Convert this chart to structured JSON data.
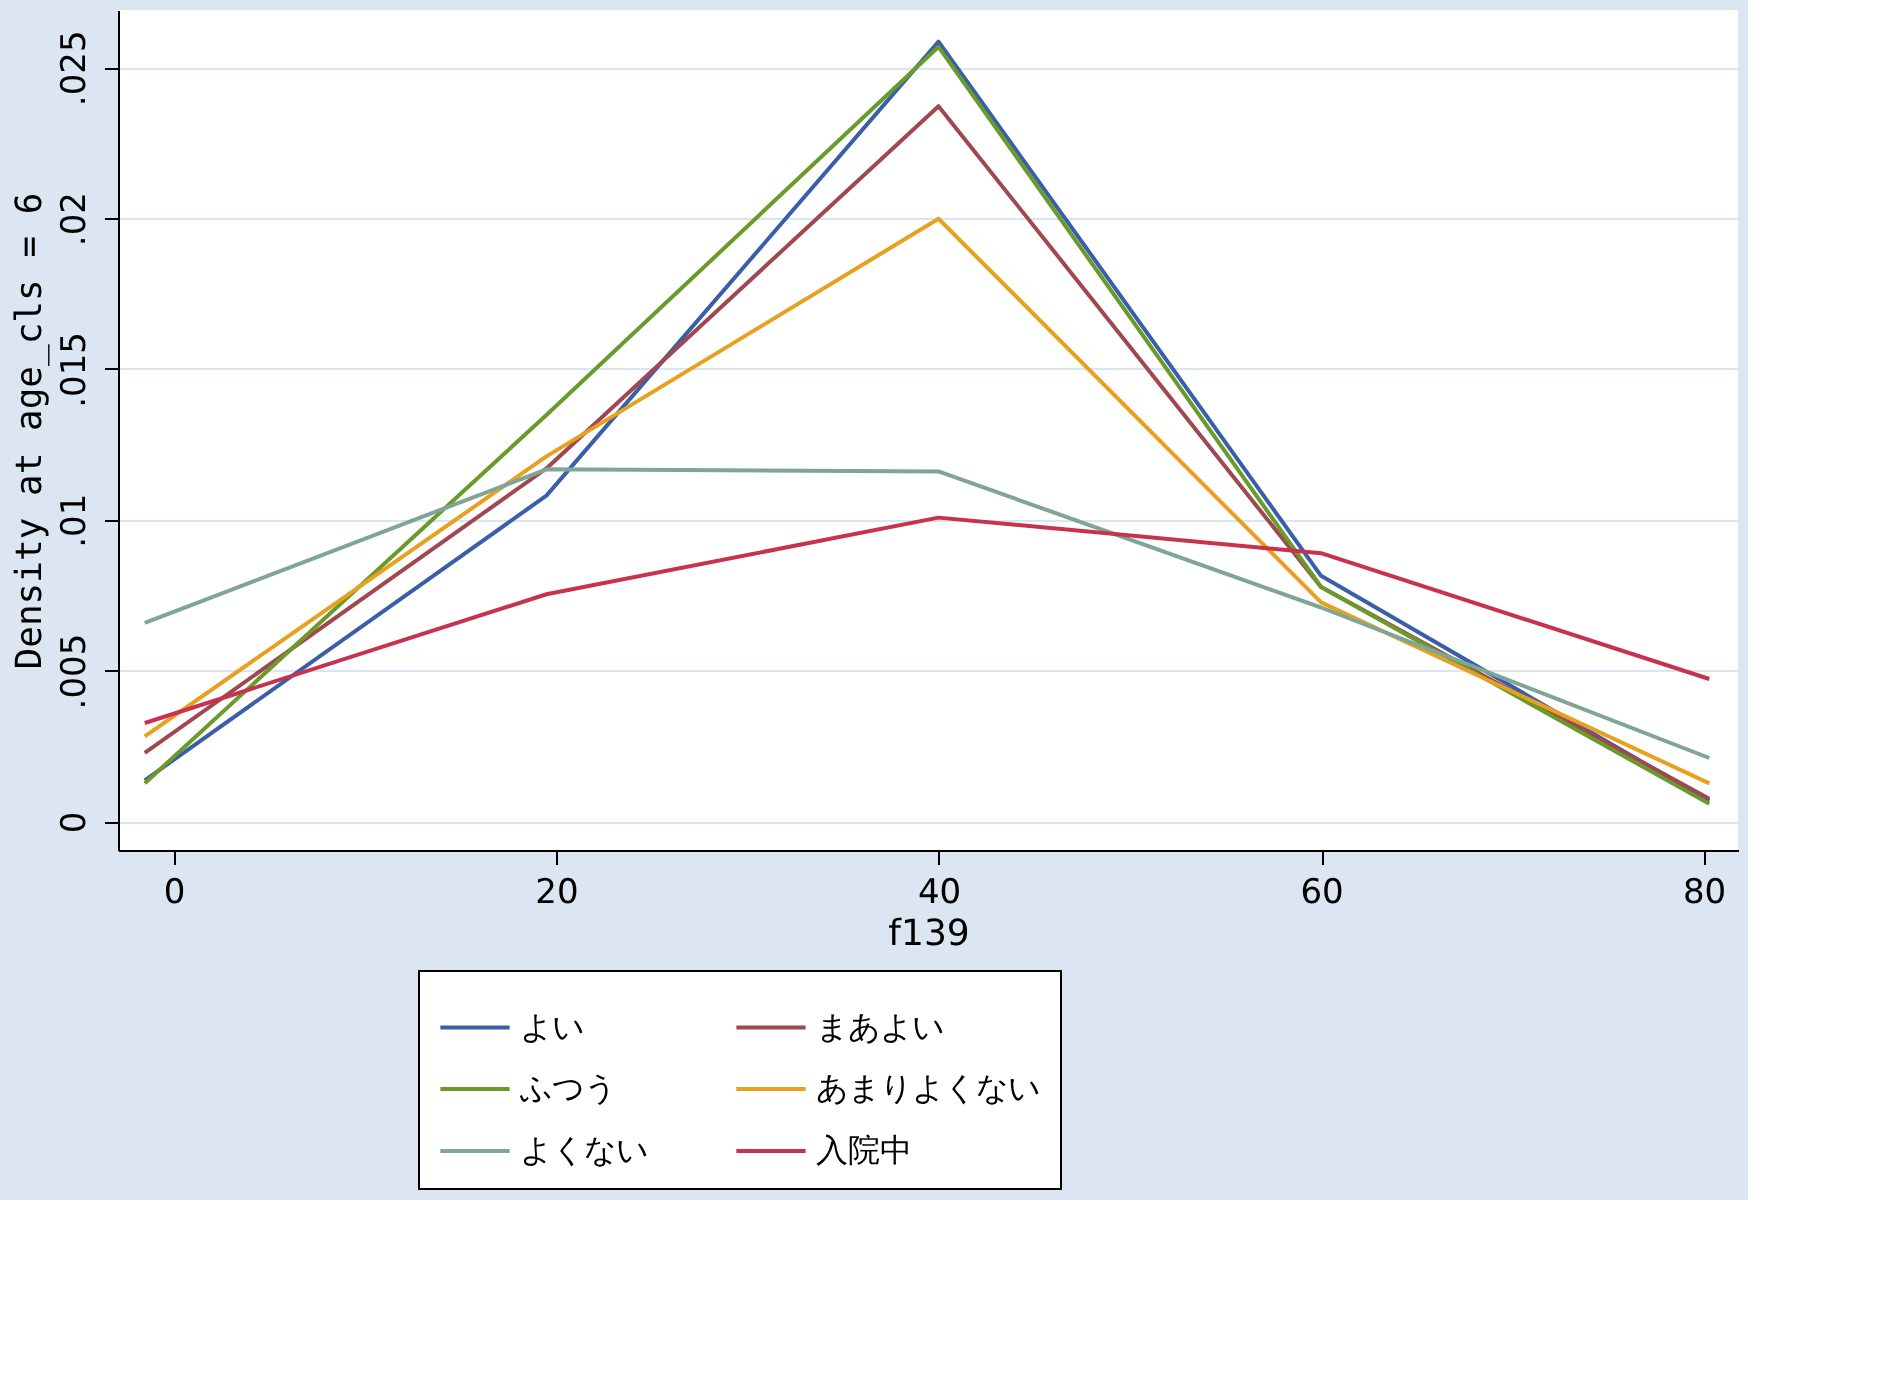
{
  "chart_data": {
    "type": "line",
    "xlabel": "f139",
    "ylabel": "Density at age_cls = 6",
    "x": [
      -1.5,
      19.5,
      40,
      60,
      80.3
    ],
    "series": [
      {
        "name": "よい",
        "color": "#3a5fa8",
        "values": [
          0.00136,
          0.0108,
          0.02585,
          0.00814,
          0.00068
        ]
      },
      {
        "name": "まあよい",
        "color": "#a0484f",
        "values": [
          0.00227,
          0.0117,
          0.02371,
          0.00777,
          0.00075
        ]
      },
      {
        "name": "ふつう",
        "color": "#6a9a2a",
        "values": [
          0.00126,
          0.01347,
          0.02568,
          0.00777,
          0.00058
        ]
      },
      {
        "name": "あまりよくない",
        "color": "#e8a020",
        "values": [
          0.00282,
          0.0121,
          0.01998,
          0.00726,
          0.00126
        ]
      },
      {
        "name": "よくない",
        "color": "#7fa596",
        "values": [
          0.00658,
          0.01167,
          0.0116,
          0.00709,
          0.0021
        ]
      },
      {
        "name": "入院中",
        "color": "#c8324f",
        "values": [
          0.00326,
          0.00753,
          0.01007,
          0.00889,
          0.00472
        ]
      }
    ],
    "xlim": [
      -2.9,
      81.8
    ],
    "xticks": [
      0,
      20,
      40,
      60,
      80
    ],
    "ylim": [
      -0.00095,
      0.0269
    ],
    "yticks": [
      0,
      {
        "value": 0.005,
        "label": ".005"
      },
      {
        "value": 0.01,
        "label": ".01"
      },
      {
        "value": 0.015,
        "label": ".015"
      },
      {
        "value": 0.02,
        "label": ".02"
      },
      {
        "value": 0.025,
        "label": ".025"
      }
    ],
    "grid": "y",
    "legend": "bottom",
    "marker": "none",
    "line_style": "solid"
  }
}
